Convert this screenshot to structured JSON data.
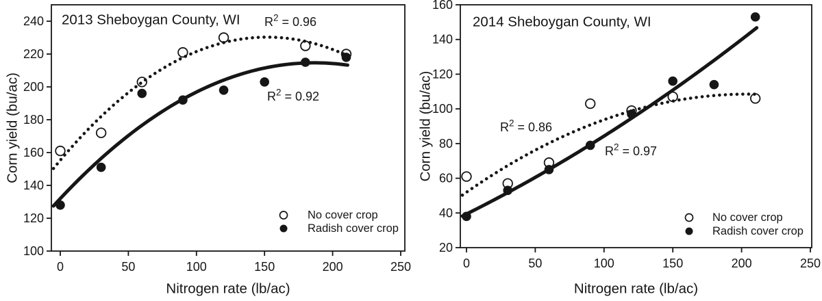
{
  "figure": {
    "background": "#ffffff",
    "ink": "#161616"
  },
  "chart_data": [
    {
      "type": "scatter",
      "title": "2013 Sheboygan County, WI",
      "xlabel": "Nitrogen rate (lb/ac)",
      "ylabel": "Corn yield (bu/ac)",
      "xlim": [
        0,
        250
      ],
      "ylim": [
        100,
        250
      ],
      "xticks": [
        0,
        50,
        100,
        150,
        200,
        250
      ],
      "yticks": [
        100,
        120,
        140,
        160,
        180,
        200,
        220,
        240
      ],
      "grid": false,
      "legend_position": "lower-right",
      "series": [
        {
          "name": "No cover crop",
          "marker": "open",
          "line": "dotted",
          "fit": "quadratic",
          "r2_label": "R² = 0.96",
          "points": [
            [
              0,
              161
            ],
            [
              30,
              172
            ],
            [
              60,
              203
            ],
            [
              90,
              221
            ],
            [
              120,
              230
            ],
            [
              180,
              225
            ],
            [
              210,
              220
            ]
          ]
        },
        {
          "name": "Radish cover crop",
          "marker": "filled",
          "line": "solid",
          "fit": "quadratic",
          "r2_label": "R² = 0.92",
          "points": [
            [
              0,
              128
            ],
            [
              30,
              151
            ],
            [
              60,
              196
            ],
            [
              90,
              192
            ],
            [
              120,
              198
            ],
            [
              150,
              203
            ],
            [
              180,
              215
            ],
            [
              210,
              218
            ]
          ]
        }
      ]
    },
    {
      "type": "scatter",
      "title": "2014 Sheboygan County, WI",
      "xlabel": "Nitrogen rate (lb/ac)",
      "ylabel": "Corn yield (bu/ac)",
      "xlim": [
        0,
        250
      ],
      "ylim": [
        20,
        160
      ],
      "xticks": [
        0,
        50,
        100,
        150,
        200,
        250
      ],
      "yticks": [
        20,
        40,
        60,
        80,
        100,
        120,
        140,
        160
      ],
      "grid": false,
      "legend_position": "lower-right",
      "series": [
        {
          "name": "No cover crop",
          "marker": "open",
          "line": "dotted",
          "fit": "quadratic",
          "r2_label": "R² = 0.86",
          "points": [
            [
              0,
              61
            ],
            [
              30,
              57
            ],
            [
              60,
              69
            ],
            [
              90,
              103
            ],
            [
              120,
              99
            ],
            [
              150,
              107
            ],
            [
              210,
              106
            ]
          ]
        },
        {
          "name": "Radish cover crop",
          "marker": "filled",
          "line": "solid",
          "fit": "quadratic",
          "r2_label": "R² = 0.97",
          "points": [
            [
              0,
              38
            ],
            [
              30,
              53
            ],
            [
              60,
              65
            ],
            [
              90,
              79
            ],
            [
              120,
              97
            ],
            [
              150,
              116
            ],
            [
              180,
              114
            ],
            [
              210,
              153
            ]
          ]
        }
      ]
    }
  ]
}
